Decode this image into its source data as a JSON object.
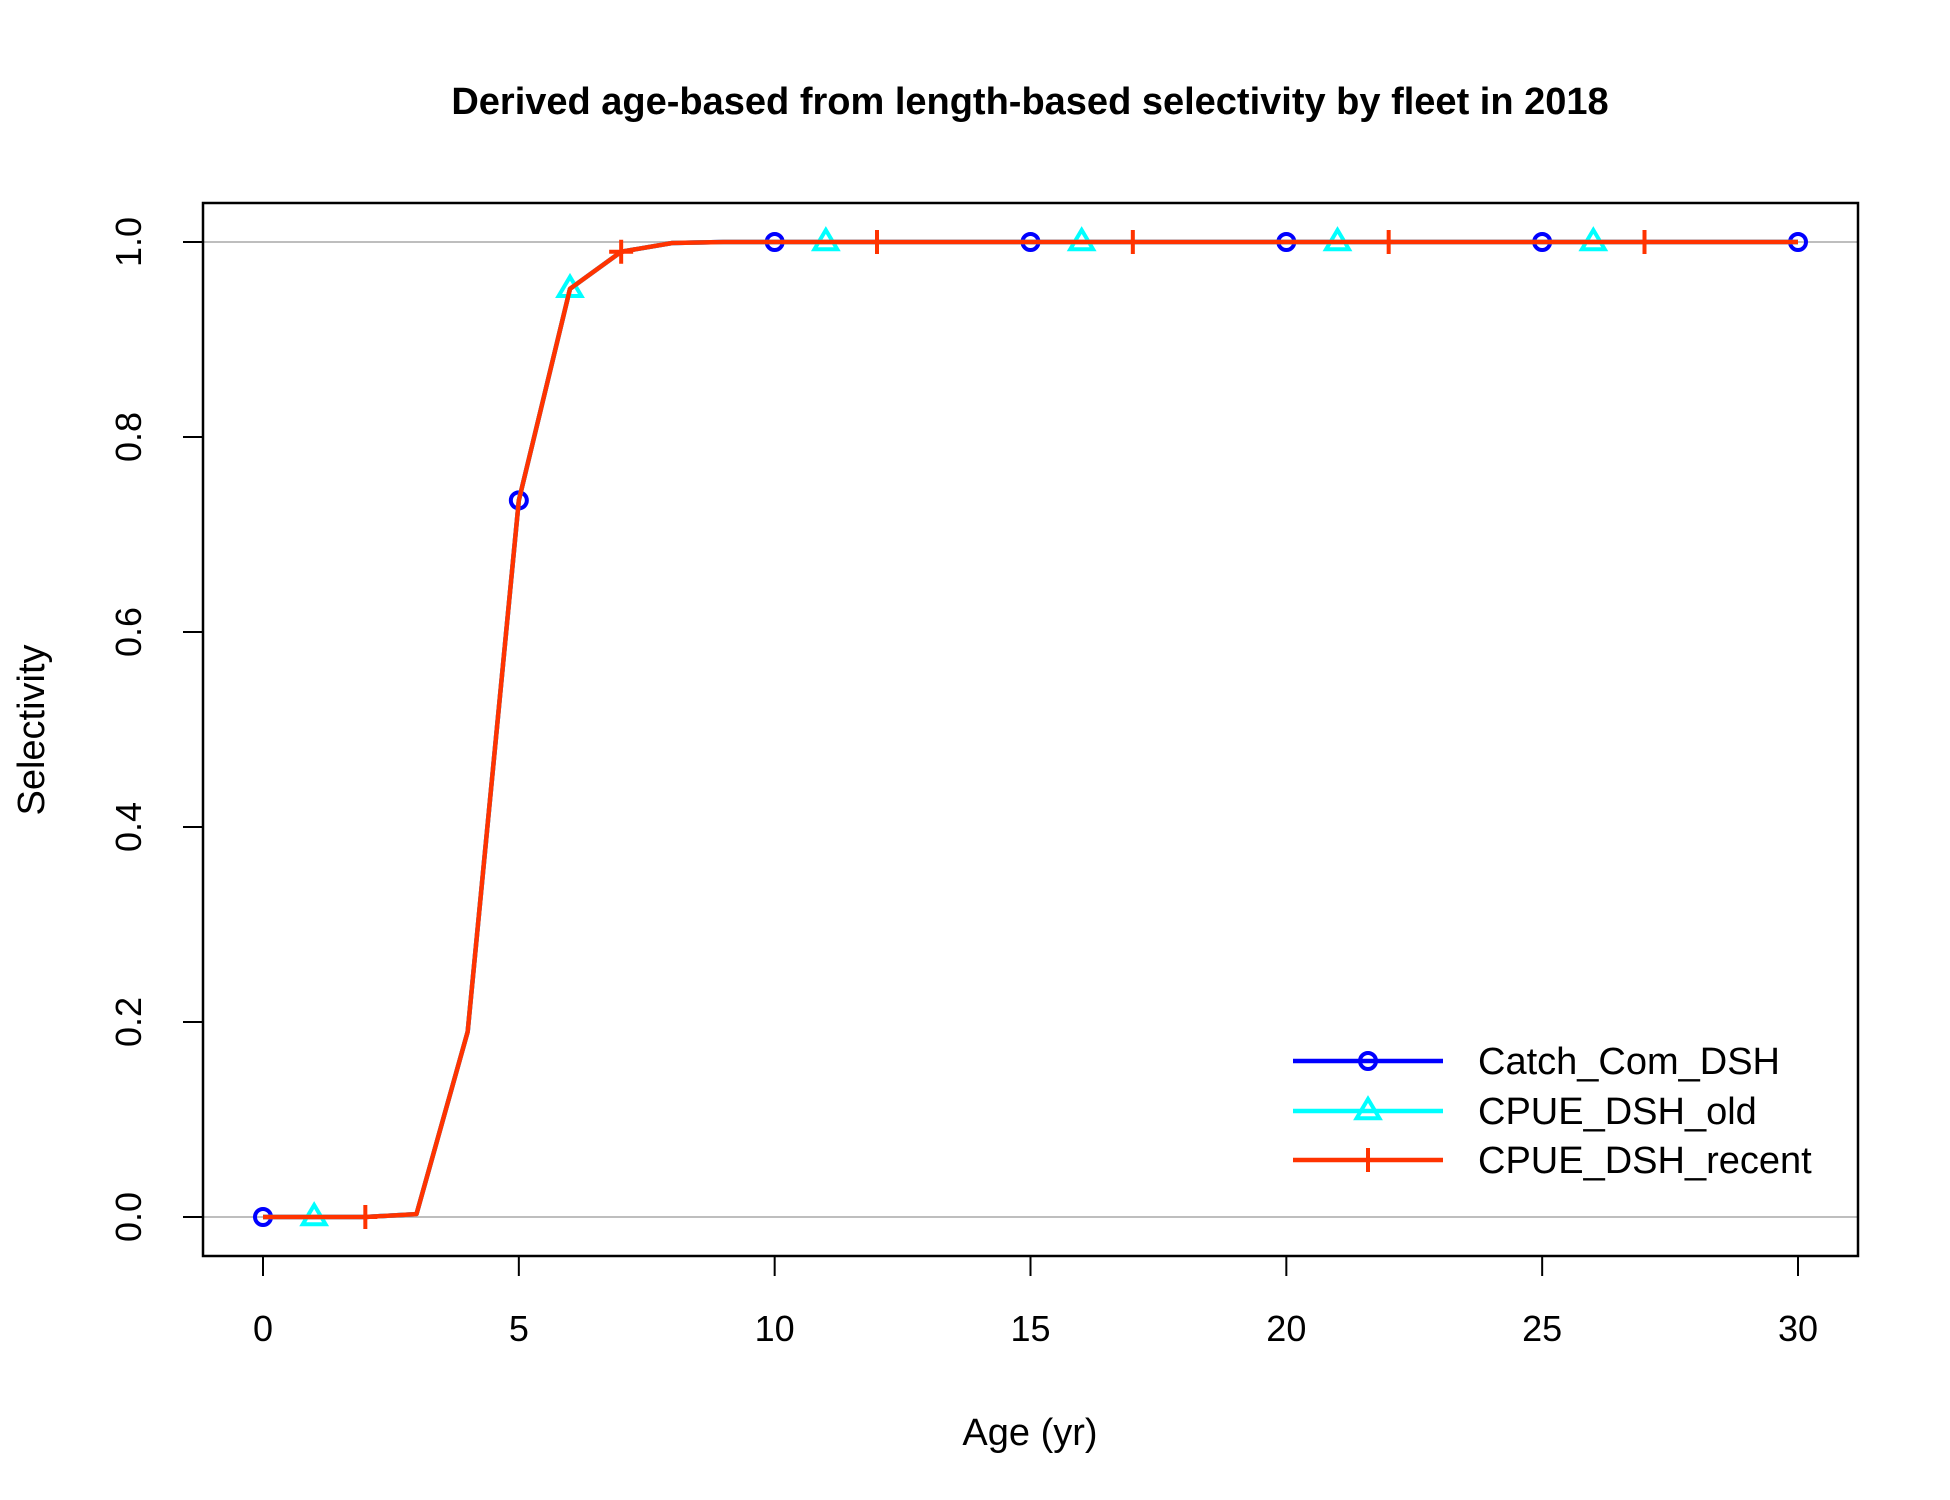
{
  "chart_data": {
    "type": "line",
    "title": "Derived age-based from length-based selectivity by fleet in 2018",
    "xlabel": "Age (yr)",
    "ylabel": "Selectivity",
    "xlim": [
      0,
      30
    ],
    "ylim": [
      0,
      1
    ],
    "xticks": [
      "0",
      "5",
      "10",
      "15",
      "20",
      "25",
      "30"
    ],
    "yticks": [
      "0.0",
      "0.2",
      "0.4",
      "0.6",
      "0.8",
      "1.0"
    ],
    "reference_lines": [
      0,
      1
    ],
    "legend_position": "bottom-right",
    "x": [
      0,
      1,
      2,
      3,
      4,
      5,
      6,
      7,
      8,
      9,
      10,
      11,
      12,
      13,
      14,
      15,
      16,
      17,
      18,
      19,
      20,
      21,
      22,
      23,
      24,
      25,
      26,
      27,
      28,
      29,
      30
    ],
    "series": [
      {
        "name": "Catch_Com_DSH",
        "color": "#0000ff",
        "marker": "circle",
        "marker_x": [
          0,
          5,
          10,
          15,
          20,
          25,
          30
        ],
        "values": [
          0,
          0,
          0,
          0.003,
          0.19,
          0.735,
          0.952,
          0.99,
          0.999,
          1,
          1,
          1,
          1,
          1,
          1,
          1,
          1,
          1,
          1,
          1,
          1,
          1,
          1,
          1,
          1,
          1,
          1,
          1,
          1,
          1,
          1
        ]
      },
      {
        "name": "CPUE_DSH_old",
        "color": "#00ffff",
        "marker": "triangle",
        "marker_x": [
          1,
          6,
          11,
          16,
          21,
          26
        ],
        "values": [
          0,
          0,
          0,
          0.003,
          0.19,
          0.735,
          0.952,
          0.99,
          0.999,
          1,
          1,
          1,
          1,
          1,
          1,
          1,
          1,
          1,
          1,
          1,
          1,
          1,
          1,
          1,
          1,
          1,
          1,
          1,
          1,
          1,
          1
        ]
      },
      {
        "name": "CPUE_DSH_recent",
        "color": "#ff3300",
        "marker": "plus",
        "marker_x": [
          2,
          7,
          12,
          17,
          22,
          27
        ],
        "values": [
          0,
          0,
          0,
          0.003,
          0.19,
          0.735,
          0.952,
          0.99,
          0.999,
          1,
          1,
          1,
          1,
          1,
          1,
          1,
          1,
          1,
          1,
          1,
          1,
          1,
          1,
          1,
          1,
          1,
          1,
          1,
          1,
          1,
          1
        ]
      }
    ]
  }
}
